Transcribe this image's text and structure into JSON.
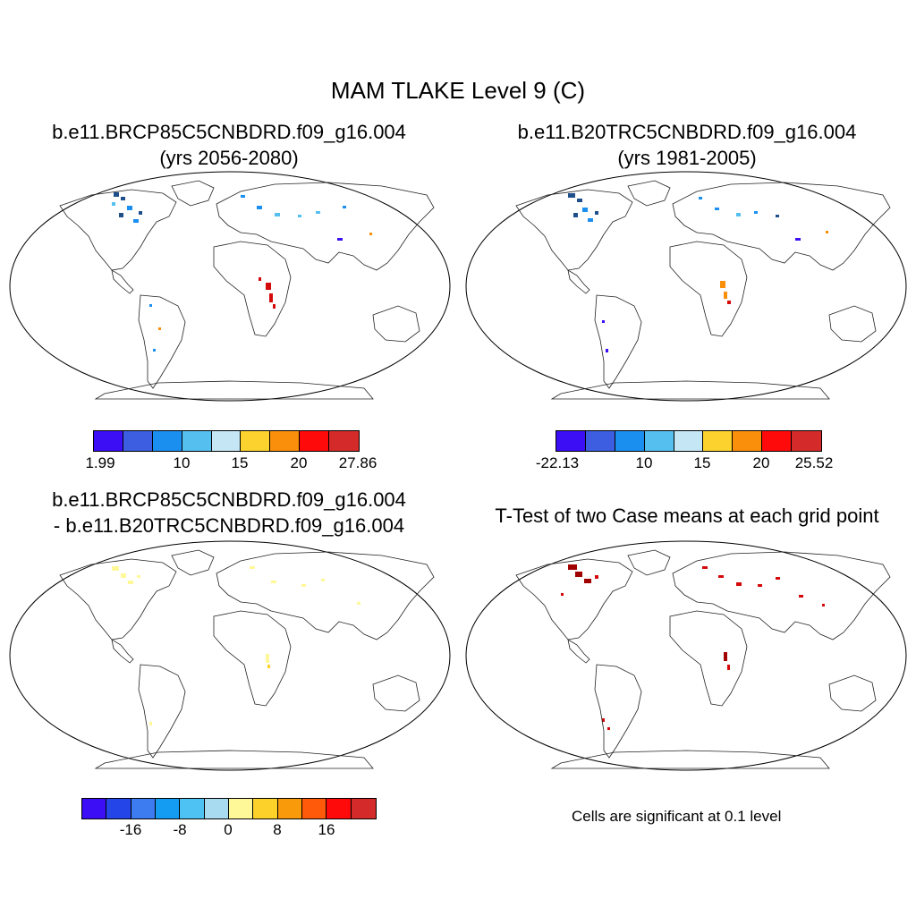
{
  "title": "MAM TLAKE Level 9 (C)",
  "panels": [
    {
      "title1": "b.e11.BRCP85C5CNBDRD.f09_g16.004",
      "title2": "(yrs 2056-2080)"
    },
    {
      "title1": "b.e11.B20TRC5CNBDRD.f09_g16.004",
      "title2": "(yrs 1981-2005)"
    },
    {
      "title1": "b.e11.BRCP85C5CNBDRD.f09_g16.004",
      "title2": "- b.e11.B20TRC5CNBDRD.f09_g16.004"
    },
    {
      "title1": "T-Test of two Case means at each grid point",
      "title2": ""
    }
  ],
  "colorbars": [
    {
      "colors": [
        "#3b0ef5",
        "#3d5ee0",
        "#1a8ff0",
        "#55c0f0",
        "#c4e6f5",
        "#fbd22e",
        "#f98f0a",
        "#ff0a0a",
        "#d42a2a"
      ],
      "labels": [
        "1.99",
        "10",
        "15",
        "20",
        "27.86"
      ]
    },
    {
      "colors": [
        "#3b0ef5",
        "#3d5ee0",
        "#1a8ff0",
        "#55c0f0",
        "#c4e6f5",
        "#fbd22e",
        "#f98f0a",
        "#ff0a0a",
        "#d42a2a"
      ],
      "labels": [
        "-22.13",
        "10",
        "15",
        "20",
        "25.52"
      ]
    },
    {
      "colors": [
        "#3b0ef5",
        "#2445e8",
        "#3d7bf0",
        "#149cf2",
        "#4ec2f2",
        "#a8daf0",
        "#fff899",
        "#fcd22a",
        "#f99a0a",
        "#ff5a0a",
        "#ff0a0a",
        "#d42a2a"
      ],
      "labels": [
        "-16",
        "-8",
        "0",
        "8",
        "16"
      ]
    }
  ],
  "note": "Cells are significant at 0.1 level"
}
